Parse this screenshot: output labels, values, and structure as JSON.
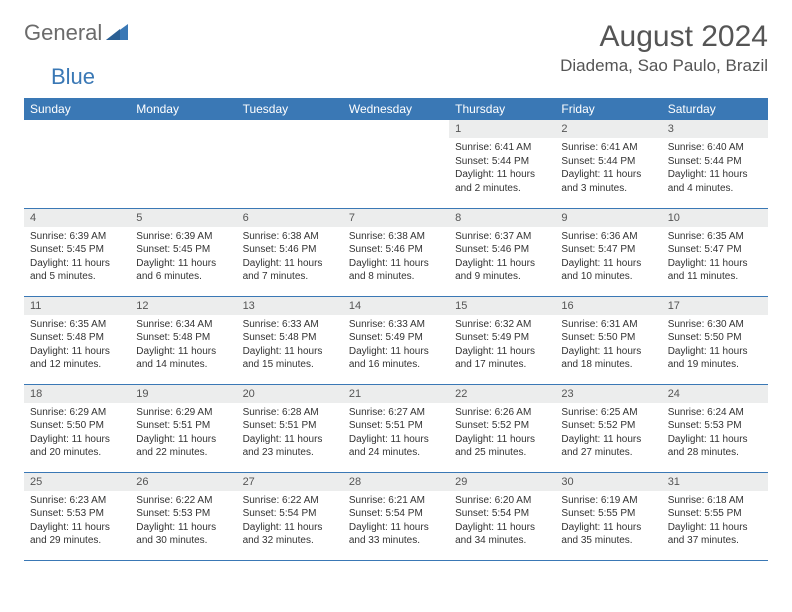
{
  "brand": {
    "part1": "General",
    "part2": "Blue"
  },
  "title": "August 2024",
  "location": "Diadema, Sao Paulo, Brazil",
  "header_bg": "#3a78b5",
  "header_fg": "#ffffff",
  "daynum_bg": "#eceded",
  "border_color": "#3a78b5",
  "weekdays": [
    "Sunday",
    "Monday",
    "Tuesday",
    "Wednesday",
    "Thursday",
    "Friday",
    "Saturday"
  ],
  "weeks": [
    [
      {
        "day": "",
        "sunrise": "",
        "sunset": "",
        "daylight": ""
      },
      {
        "day": "",
        "sunrise": "",
        "sunset": "",
        "daylight": ""
      },
      {
        "day": "",
        "sunrise": "",
        "sunset": "",
        "daylight": ""
      },
      {
        "day": "",
        "sunrise": "",
        "sunset": "",
        "daylight": ""
      },
      {
        "day": "1",
        "sunrise": "Sunrise: 6:41 AM",
        "sunset": "Sunset: 5:44 PM",
        "daylight": "Daylight: 11 hours and 2 minutes."
      },
      {
        "day": "2",
        "sunrise": "Sunrise: 6:41 AM",
        "sunset": "Sunset: 5:44 PM",
        "daylight": "Daylight: 11 hours and 3 minutes."
      },
      {
        "day": "3",
        "sunrise": "Sunrise: 6:40 AM",
        "sunset": "Sunset: 5:44 PM",
        "daylight": "Daylight: 11 hours and 4 minutes."
      }
    ],
    [
      {
        "day": "4",
        "sunrise": "Sunrise: 6:39 AM",
        "sunset": "Sunset: 5:45 PM",
        "daylight": "Daylight: 11 hours and 5 minutes."
      },
      {
        "day": "5",
        "sunrise": "Sunrise: 6:39 AM",
        "sunset": "Sunset: 5:45 PM",
        "daylight": "Daylight: 11 hours and 6 minutes."
      },
      {
        "day": "6",
        "sunrise": "Sunrise: 6:38 AM",
        "sunset": "Sunset: 5:46 PM",
        "daylight": "Daylight: 11 hours and 7 minutes."
      },
      {
        "day": "7",
        "sunrise": "Sunrise: 6:38 AM",
        "sunset": "Sunset: 5:46 PM",
        "daylight": "Daylight: 11 hours and 8 minutes."
      },
      {
        "day": "8",
        "sunrise": "Sunrise: 6:37 AM",
        "sunset": "Sunset: 5:46 PM",
        "daylight": "Daylight: 11 hours and 9 minutes."
      },
      {
        "day": "9",
        "sunrise": "Sunrise: 6:36 AM",
        "sunset": "Sunset: 5:47 PM",
        "daylight": "Daylight: 11 hours and 10 minutes."
      },
      {
        "day": "10",
        "sunrise": "Sunrise: 6:35 AM",
        "sunset": "Sunset: 5:47 PM",
        "daylight": "Daylight: 11 hours and 11 minutes."
      }
    ],
    [
      {
        "day": "11",
        "sunrise": "Sunrise: 6:35 AM",
        "sunset": "Sunset: 5:48 PM",
        "daylight": "Daylight: 11 hours and 12 minutes."
      },
      {
        "day": "12",
        "sunrise": "Sunrise: 6:34 AM",
        "sunset": "Sunset: 5:48 PM",
        "daylight": "Daylight: 11 hours and 14 minutes."
      },
      {
        "day": "13",
        "sunrise": "Sunrise: 6:33 AM",
        "sunset": "Sunset: 5:48 PM",
        "daylight": "Daylight: 11 hours and 15 minutes."
      },
      {
        "day": "14",
        "sunrise": "Sunrise: 6:33 AM",
        "sunset": "Sunset: 5:49 PM",
        "daylight": "Daylight: 11 hours and 16 minutes."
      },
      {
        "day": "15",
        "sunrise": "Sunrise: 6:32 AM",
        "sunset": "Sunset: 5:49 PM",
        "daylight": "Daylight: 11 hours and 17 minutes."
      },
      {
        "day": "16",
        "sunrise": "Sunrise: 6:31 AM",
        "sunset": "Sunset: 5:50 PM",
        "daylight": "Daylight: 11 hours and 18 minutes."
      },
      {
        "day": "17",
        "sunrise": "Sunrise: 6:30 AM",
        "sunset": "Sunset: 5:50 PM",
        "daylight": "Daylight: 11 hours and 19 minutes."
      }
    ],
    [
      {
        "day": "18",
        "sunrise": "Sunrise: 6:29 AM",
        "sunset": "Sunset: 5:50 PM",
        "daylight": "Daylight: 11 hours and 20 minutes."
      },
      {
        "day": "19",
        "sunrise": "Sunrise: 6:29 AM",
        "sunset": "Sunset: 5:51 PM",
        "daylight": "Daylight: 11 hours and 22 minutes."
      },
      {
        "day": "20",
        "sunrise": "Sunrise: 6:28 AM",
        "sunset": "Sunset: 5:51 PM",
        "daylight": "Daylight: 11 hours and 23 minutes."
      },
      {
        "day": "21",
        "sunrise": "Sunrise: 6:27 AM",
        "sunset": "Sunset: 5:51 PM",
        "daylight": "Daylight: 11 hours and 24 minutes."
      },
      {
        "day": "22",
        "sunrise": "Sunrise: 6:26 AM",
        "sunset": "Sunset: 5:52 PM",
        "daylight": "Daylight: 11 hours and 25 minutes."
      },
      {
        "day": "23",
        "sunrise": "Sunrise: 6:25 AM",
        "sunset": "Sunset: 5:52 PM",
        "daylight": "Daylight: 11 hours and 27 minutes."
      },
      {
        "day": "24",
        "sunrise": "Sunrise: 6:24 AM",
        "sunset": "Sunset: 5:53 PM",
        "daylight": "Daylight: 11 hours and 28 minutes."
      }
    ],
    [
      {
        "day": "25",
        "sunrise": "Sunrise: 6:23 AM",
        "sunset": "Sunset: 5:53 PM",
        "daylight": "Daylight: 11 hours and 29 minutes."
      },
      {
        "day": "26",
        "sunrise": "Sunrise: 6:22 AM",
        "sunset": "Sunset: 5:53 PM",
        "daylight": "Daylight: 11 hours and 30 minutes."
      },
      {
        "day": "27",
        "sunrise": "Sunrise: 6:22 AM",
        "sunset": "Sunset: 5:54 PM",
        "daylight": "Daylight: 11 hours and 32 minutes."
      },
      {
        "day": "28",
        "sunrise": "Sunrise: 6:21 AM",
        "sunset": "Sunset: 5:54 PM",
        "daylight": "Daylight: 11 hours and 33 minutes."
      },
      {
        "day": "29",
        "sunrise": "Sunrise: 6:20 AM",
        "sunset": "Sunset: 5:54 PM",
        "daylight": "Daylight: 11 hours and 34 minutes."
      },
      {
        "day": "30",
        "sunrise": "Sunrise: 6:19 AM",
        "sunset": "Sunset: 5:55 PM",
        "daylight": "Daylight: 11 hours and 35 minutes."
      },
      {
        "day": "31",
        "sunrise": "Sunrise: 6:18 AM",
        "sunset": "Sunset: 5:55 PM",
        "daylight": "Daylight: 11 hours and 37 minutes."
      }
    ]
  ]
}
